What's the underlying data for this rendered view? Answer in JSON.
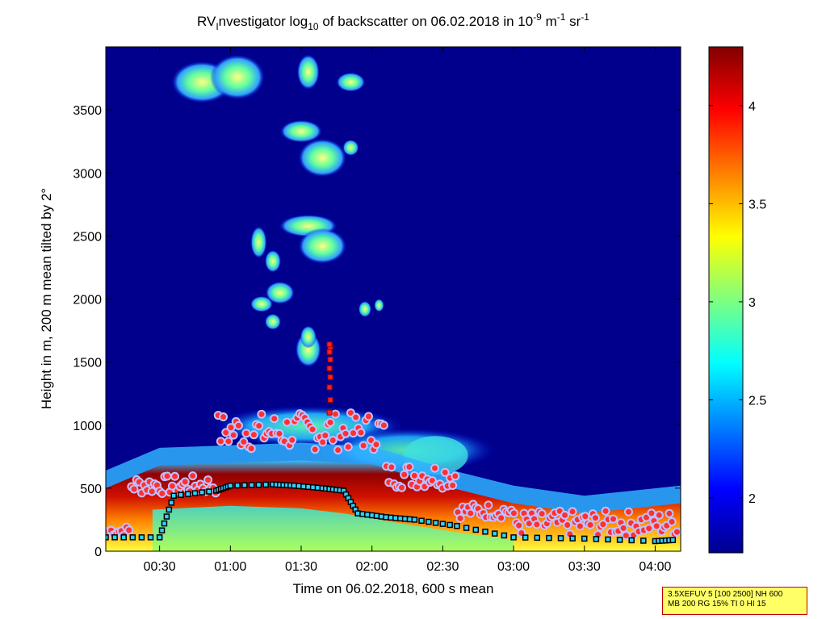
{
  "chart_data": {
    "type": "heatmap",
    "title": {
      "pre": "RV",
      "sub1": "I",
      "mid": "nvestigator log",
      "sub2": "10",
      "post1": " of backscatter on 06.02.2018 in 10",
      "sup1": "-9",
      "post2": " m",
      "sup2": "-1",
      "post3": " sr",
      "sup3": "-1"
    },
    "xlabel": "Time on 06.02.2018, 600 s mean",
    "ylabel": "Height in m, 200 m mean tilted by 2°",
    "x_ticks": [
      "00:30",
      "01:00",
      "01:30",
      "02:00",
      "02:30",
      "03:00",
      "03:30",
      "04:00"
    ],
    "x_tick_hours": [
      0.5,
      1.0,
      1.5,
      2.0,
      2.5,
      3.0,
      3.5,
      4.0
    ],
    "xlim_hours": [
      0.12,
      4.18
    ],
    "y_ticks": [
      0,
      500,
      1000,
      1500,
      2000,
      2500,
      3000,
      3500
    ],
    "ylim": [
      0,
      4000
    ],
    "colorbar": {
      "ticks": [
        2,
        2.5,
        3,
        3.5,
        4
      ],
      "labels": [
        "2",
        "2.5",
        "3",
        "3.5",
        "4"
      ],
      "range": [
        1.72,
        4.3
      ],
      "colormap": "jet"
    },
    "layers": {
      "boundary_layer_top_m": [
        {
          "t": 0.12,
          "h": 500
        },
        {
          "t": 0.5,
          "h": 680
        },
        {
          "t": 1.0,
          "h": 700
        },
        {
          "t": 1.5,
          "h": 720
        },
        {
          "t": 2.0,
          "h": 690
        },
        {
          "t": 2.5,
          "h": 520
        },
        {
          "t": 3.0,
          "h": 380
        },
        {
          "t": 3.5,
          "h": 300
        },
        {
          "t": 4.18,
          "h": 380
        }
      ],
      "cloud_patches": [
        {
          "t": 1.5,
          "h": 1100,
          "note": "elevated aerosol layer"
        },
        {
          "t": 1.55,
          "h": 2550
        },
        {
          "t": 1.5,
          "h": 3150
        },
        {
          "t": 0.95,
          "h": 3700
        }
      ]
    },
    "series": [
      {
        "marker": "circle",
        "edge": "#c0c0ff",
        "fill": "#ff3030"
      },
      {
        "marker": "square",
        "edge": "#000000",
        "fill": "#30d0ff"
      },
      {
        "marker": "square",
        "edge": "#a00000",
        "fill": "#ff2020"
      }
    ]
  },
  "info_box": {
    "line1": "3.5XEFUV 5 [100 2500] NH 600",
    "line2": "MB 200 RG 15% TI 0 HI 15"
  }
}
